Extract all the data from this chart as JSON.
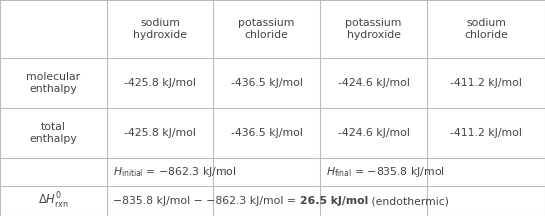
{
  "col_headers": [
    "sodium\nhydroxide",
    "potassium\nchloride",
    "potassium\nhydroxide",
    "sodium\nchloride"
  ],
  "mol_enthalpy": [
    "-425.8 kJ/mol",
    "-436.5 kJ/mol",
    "-424.6 kJ/mol",
    "-411.2 kJ/mol"
  ],
  "tot_enthalpy": [
    "-425.8 kJ/mol",
    "-436.5 kJ/mol",
    "-424.6 kJ/mol",
    "-411.2 kJ/mol"
  ],
  "background": "#ffffff",
  "line_color": "#bbbbbb",
  "text_color": "#444444",
  "font_size": 7.8,
  "col_bounds": [
    0,
    107,
    213,
    320,
    427,
    545
  ],
  "row_bounds": [
    0,
    58,
    108,
    158,
    186,
    216
  ]
}
